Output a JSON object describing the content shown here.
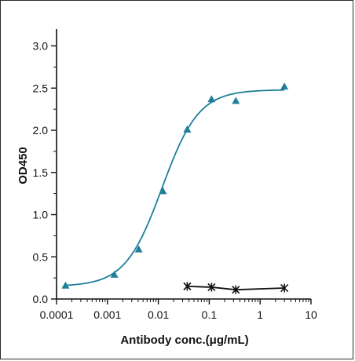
{
  "chart_data": {
    "type": "scatter",
    "xlabel": "Antibody conc.(μg/mL)",
    "ylabel": "OD450",
    "x_scale": "log",
    "xlim": [
      0.0001,
      10
    ],
    "ylim": [
      0,
      3.2
    ],
    "x_ticks": [
      "0.0001",
      "0.001",
      "0.01",
      "0.1",
      "1",
      "10"
    ],
    "y_ticks": [
      "0.0",
      "0.5",
      "1.0",
      "1.5",
      "2.0",
      "2.5",
      "3.0"
    ],
    "grid": false,
    "legend": "none",
    "series": [
      {
        "marker": "triangle",
        "color": "#1f7f99",
        "fit": "four-parameter logistic curve",
        "x": [
          0.00015,
          0.00137,
          0.00412,
          0.0123,
          0.037,
          0.111,
          0.333,
          3.0
        ],
        "y": [
          0.16,
          0.29,
          0.59,
          1.28,
          2.01,
          2.37,
          2.35,
          2.52
        ]
      },
      {
        "marker": "star",
        "color": "#111111",
        "fit": "line",
        "x": [
          0.037,
          0.111,
          0.333,
          3.0
        ],
        "y": [
          0.15,
          0.14,
          0.11,
          0.13
        ]
      }
    ]
  }
}
